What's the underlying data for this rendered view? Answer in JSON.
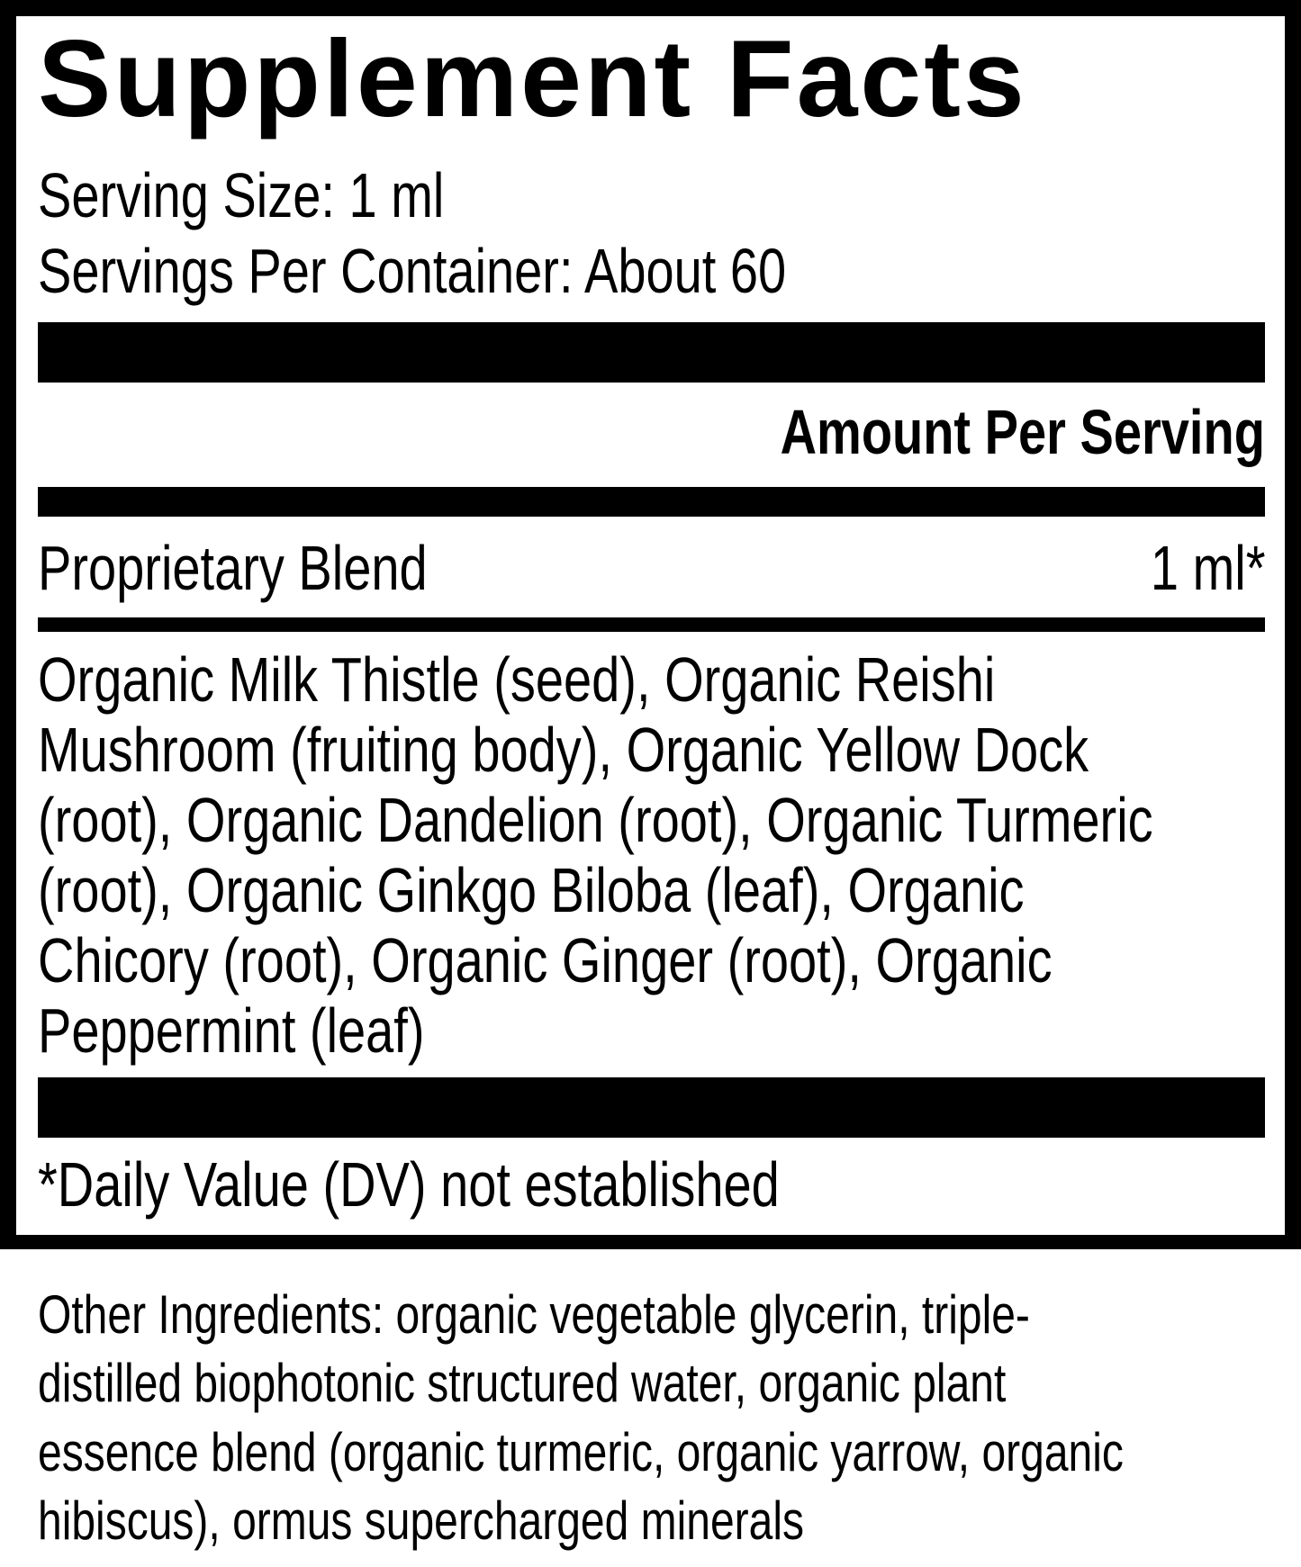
{
  "title": "Supplement Facts",
  "serving_size": "Serving Size: 1 ml",
  "servings_per_container": "Servings Per Container: About 60",
  "amount_header": "Amount Per Serving",
  "blend": {
    "name": "Proprietary Blend",
    "amount": "1 ml*"
  },
  "blend_ingredients_lines": [
    "Organic Milk Thistle (seed), Organic Reishi",
    "Mushroom (fruiting body), Organic Yellow Dock",
    "(root), Organic Dandelion (root), Organic Turmeric",
    "(root), Organic Ginkgo Biloba (leaf), Organic",
    "Chicory (root), Organic Ginger (root), Organic",
    "Peppermint (leaf)"
  ],
  "footnote": "*Daily Value (DV) not established",
  "other_ingredients_lines": [
    "Other Ingredients: organic vegetable glycerin, triple-",
    "distilled biophotonic structured water, organic plant",
    "essence blend (organic turmeric, organic yarrow, organic",
    "hibiscus), ormus supercharged minerals"
  ]
}
